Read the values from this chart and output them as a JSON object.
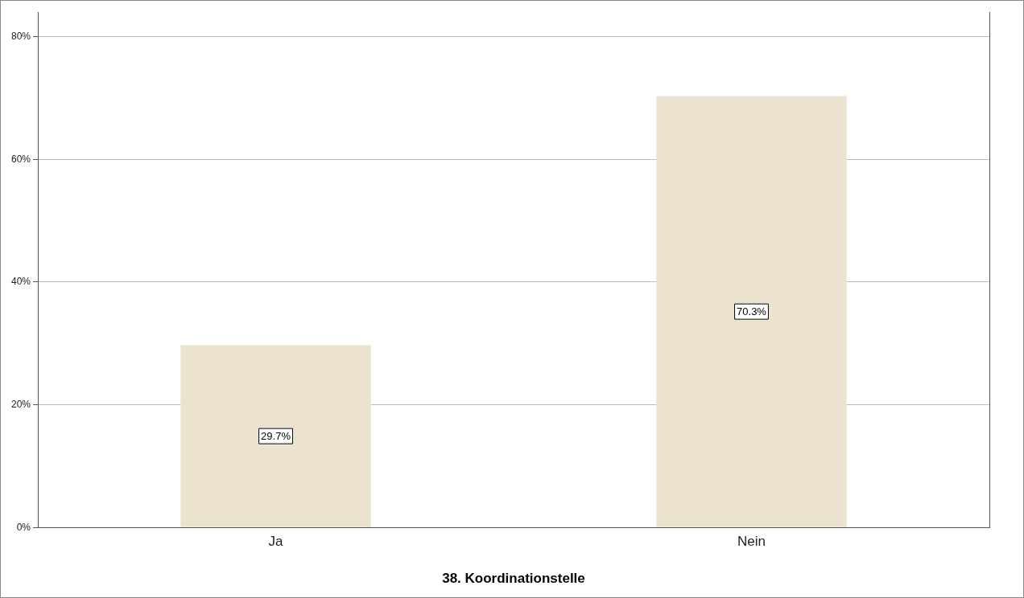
{
  "chart_data": {
    "type": "bar",
    "xlabel": "38. Koordinationstelle",
    "categories": [
      "Ja",
      "Nein"
    ],
    "values": [
      29.7,
      70.3
    ],
    "value_labels": [
      "29.7%",
      "70.3%"
    ],
    "color": "#ebe3cf",
    "ylim": [
      0,
      84
    ],
    "yticks": [
      {
        "value": 0,
        "label": "0%"
      },
      {
        "value": 20,
        "label": "20%"
      },
      {
        "value": 40,
        "label": "40%"
      },
      {
        "value": 60,
        "label": "60%"
      },
      {
        "value": 80,
        "label": "80%"
      }
    ],
    "grid": "y",
    "legend": false
  }
}
